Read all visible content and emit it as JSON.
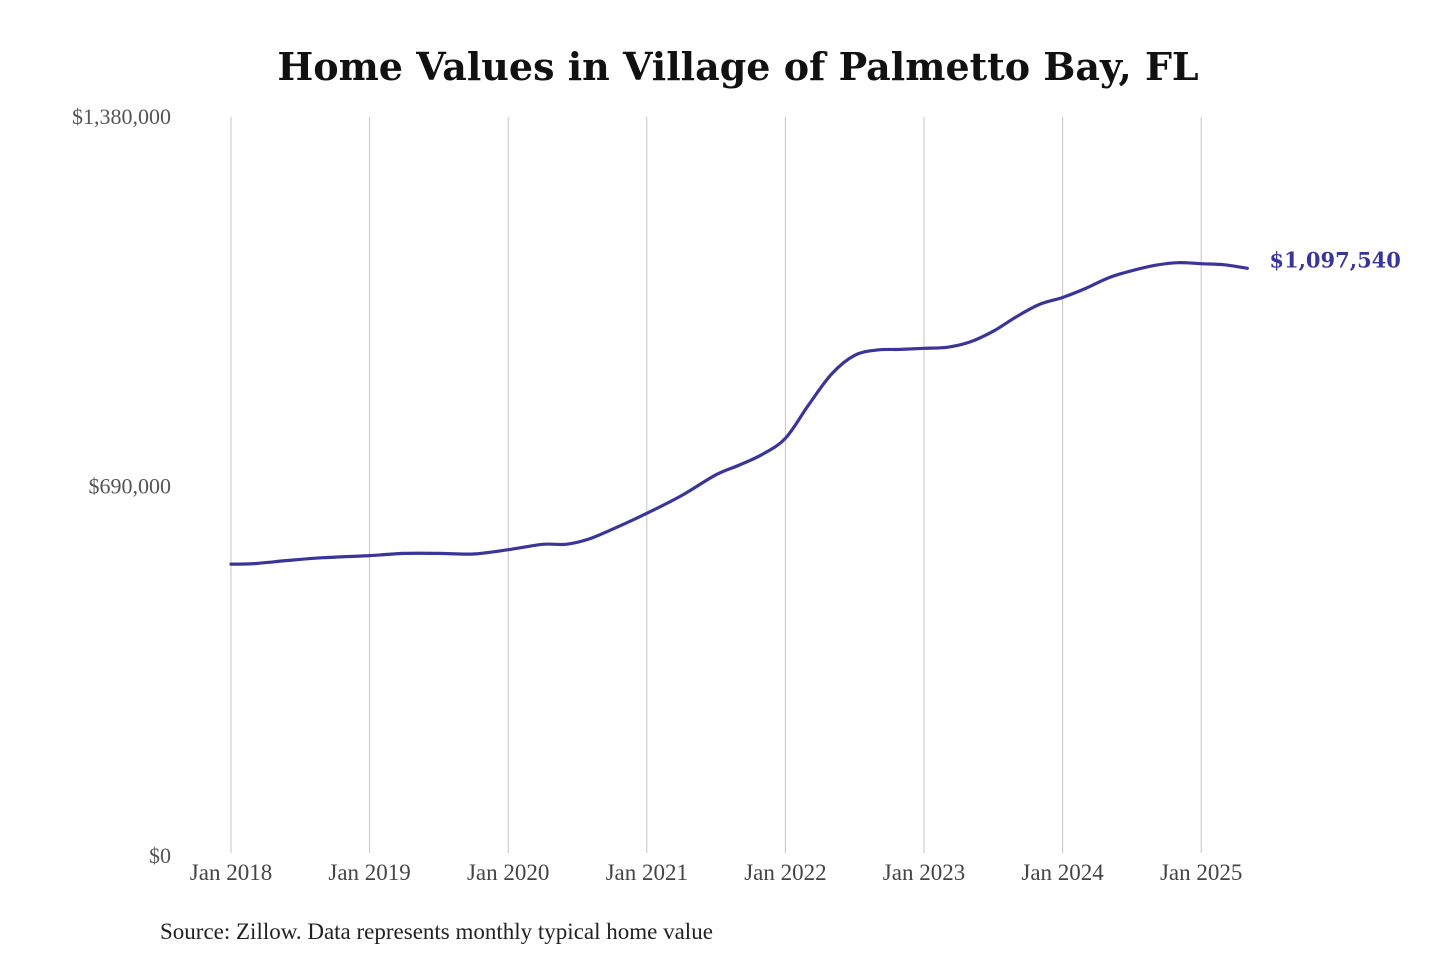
{
  "chart_data": {
    "type": "line",
    "title": "Home Values in Village of Palmetto Bay, FL",
    "xlabel": "",
    "ylabel": "",
    "ylim": [
      0,
      1380000
    ],
    "y_ticks": [
      "$0",
      "$690,000",
      "$1,380,000"
    ],
    "y_tick_values": [
      0,
      690000,
      1380000
    ],
    "x_ticks": [
      "Jan 2018",
      "Jan 2019",
      "Jan 2020",
      "Jan 2021",
      "Jan 2022",
      "Jan 2023",
      "Jan 2024",
      "Jan 2025"
    ],
    "x_tick_values": [
      "2018-01",
      "2019-01",
      "2020-01",
      "2021-01",
      "2022-01",
      "2023-01",
      "2024-01",
      "2025-01"
    ],
    "x_range": [
      "2018-01",
      "2025-05"
    ],
    "grid": "vertical",
    "line_color": "#3a3699",
    "series": [
      {
        "values": [
          {
            "x": "2018-01",
            "y": 545000
          },
          {
            "x": "2018-03",
            "y": 546000
          },
          {
            "x": "2018-06",
            "y": 552000
          },
          {
            "x": "2018-09",
            "y": 557000
          },
          {
            "x": "2019-01",
            "y": 561000
          },
          {
            "x": "2019-04",
            "y": 565000
          },
          {
            "x": "2019-07",
            "y": 565000
          },
          {
            "x": "2019-10",
            "y": 564000
          },
          {
            "x": "2020-01",
            "y": 572000
          },
          {
            "x": "2020-04",
            "y": 582000
          },
          {
            "x": "2020-06",
            "y": 582000
          },
          {
            "x": "2020-08",
            "y": 592000
          },
          {
            "x": "2020-10",
            "y": 610000
          },
          {
            "x": "2021-01",
            "y": 640000
          },
          {
            "x": "2021-04",
            "y": 673000
          },
          {
            "x": "2021-07",
            "y": 712000
          },
          {
            "x": "2021-09",
            "y": 730000
          },
          {
            "x": "2021-11",
            "y": 750000
          },
          {
            "x": "2022-01",
            "y": 780000
          },
          {
            "x": "2022-03",
            "y": 842000
          },
          {
            "x": "2022-05",
            "y": 900000
          },
          {
            "x": "2022-07",
            "y": 935000
          },
          {
            "x": "2022-09",
            "y": 945000
          },
          {
            "x": "2022-11",
            "y": 946000
          },
          {
            "x": "2023-01",
            "y": 948000
          },
          {
            "x": "2023-03",
            "y": 950000
          },
          {
            "x": "2023-05",
            "y": 960000
          },
          {
            "x": "2023-07",
            "y": 980000
          },
          {
            "x": "2023-09",
            "y": 1007000
          },
          {
            "x": "2023-11",
            "y": 1030000
          },
          {
            "x": "2024-01",
            "y": 1043000
          },
          {
            "x": "2024-03",
            "y": 1060000
          },
          {
            "x": "2024-05",
            "y": 1080000
          },
          {
            "x": "2024-07",
            "y": 1093000
          },
          {
            "x": "2024-09",
            "y": 1103000
          },
          {
            "x": "2024-11",
            "y": 1108000
          },
          {
            "x": "2025-01",
            "y": 1106000
          },
          {
            "x": "2025-03",
            "y": 1104000
          },
          {
            "x": "2025-05",
            "y": 1097540
          }
        ]
      }
    ],
    "end_label": "$1,097,540",
    "source": "Source: Zillow. Data represents monthly typical home value"
  }
}
